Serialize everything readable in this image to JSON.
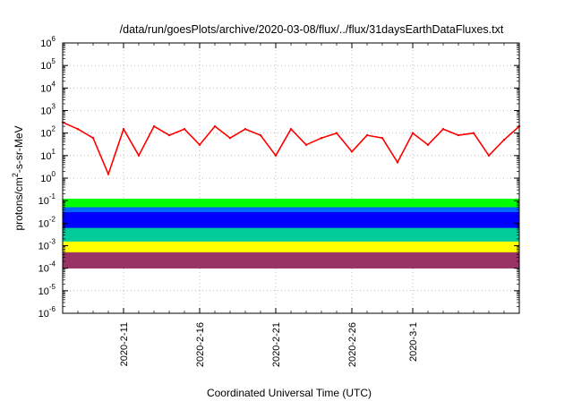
{
  "chart_data": {
    "type": "line",
    "title": "/data/run/goesPlots/archive/2020-03-08/flux/../flux/31daysEarthDataFluxes.txt",
    "xlabel": "Coordinated Universal Time (UTC)",
    "ylabel_parts": {
      "pre": "protons/cm",
      "sup": "2",
      "post": "-s-sr-MeV"
    },
    "yscale": "log",
    "ylim": [
      1e-06,
      1000000.0
    ],
    "yticks": [
      {
        "value": 1e-06,
        "base": "10",
        "exp": "-6"
      },
      {
        "value": 1e-05,
        "base": "10",
        "exp": "-5"
      },
      {
        "value": 0.0001,
        "base": "10",
        "exp": "-4"
      },
      {
        "value": 0.001,
        "base": "10",
        "exp": "-3"
      },
      {
        "value": 0.01,
        "base": "10",
        "exp": "-2"
      },
      {
        "value": 0.1,
        "base": "10",
        "exp": "-1"
      },
      {
        "value": 1.0,
        "base": "10",
        "exp": "0"
      },
      {
        "value": 10.0,
        "base": "10",
        "exp": "1"
      },
      {
        "value": 100.0,
        "base": "10",
        "exp": "2"
      },
      {
        "value": 1000.0,
        "base": "10",
        "exp": "3"
      },
      {
        "value": 10000.0,
        "base": "10",
        "exp": "4"
      },
      {
        "value": 100000.0,
        "base": "10",
        "exp": "5"
      },
      {
        "value": 1000000.0,
        "base": "10",
        "exp": "6"
      }
    ],
    "xlim": [
      "2020-02-07",
      "2020-03-08"
    ],
    "xticks": [
      {
        "date": "2020-02-11",
        "label": "2020-2-11"
      },
      {
        "date": "2020-02-16",
        "label": "2020-2-16"
      },
      {
        "date": "2020-02-21",
        "label": "2020-2-21"
      },
      {
        "date": "2020-02-26",
        "label": "2020-2-26"
      },
      {
        "date": "2020-03-01",
        "label": "2020-3-1"
      }
    ],
    "grid": true,
    "legend": "none",
    "series": [
      {
        "color": "#ff0000",
        "kind": "line",
        "x": [
          "2020-02-07",
          "2020-02-08",
          "2020-02-09",
          "2020-02-10",
          "2020-02-11",
          "2020-02-12",
          "2020-02-13",
          "2020-02-14",
          "2020-02-15",
          "2020-02-16",
          "2020-02-17",
          "2020-02-18",
          "2020-02-19",
          "2020-02-20",
          "2020-02-21",
          "2020-02-22",
          "2020-02-23",
          "2020-02-24",
          "2020-02-25",
          "2020-02-26",
          "2020-02-27",
          "2020-02-28",
          "2020-02-29",
          "2020-03-01",
          "2020-03-02",
          "2020-03-03",
          "2020-03-04",
          "2020-03-05",
          "2020-03-06",
          "2020-03-07",
          "2020-03-08"
        ],
        "values": [
          300,
          150,
          60,
          1.5,
          150,
          10,
          200,
          80,
          150,
          30,
          200,
          60,
          150,
          80,
          10,
          150,
          30,
          60,
          100,
          15,
          80,
          60,
          5,
          100,
          30,
          150,
          80,
          100,
          10,
          50,
          200
        ]
      },
      {
        "color": "#00ff00",
        "kind": "band",
        "x": [
          "2020-02-07",
          "2020-03-08"
        ],
        "upper": [
          0.12,
          0.12
        ],
        "lower": [
          0.03,
          0.03
        ]
      },
      {
        "color": "#0066ff",
        "kind": "band",
        "x": [
          "2020-02-07",
          "2020-03-08"
        ],
        "upper": [
          0.05,
          0.05
        ],
        "lower": [
          0.004,
          0.004
        ]
      },
      {
        "color": "#0000ff",
        "kind": "band",
        "x": [
          "2020-02-07",
          "2020-03-08"
        ],
        "upper": [
          0.03,
          0.03
        ],
        "lower": [
          0.005,
          0.005
        ]
      },
      {
        "color": "#00cc99",
        "kind": "band",
        "x": [
          "2020-02-07",
          "2020-03-08"
        ],
        "upper": [
          0.006,
          0.006
        ],
        "lower": [
          0.0012,
          0.0012
        ]
      },
      {
        "color": "#ffff00",
        "kind": "band",
        "x": [
          "2020-02-07",
          "2020-03-08"
        ],
        "upper": [
          0.0015,
          0.0015
        ],
        "lower": [
          0.0003,
          0.0003
        ]
      },
      {
        "color": "#993366",
        "kind": "band",
        "x": [
          "2020-02-07",
          "2020-03-08"
        ],
        "upper": [
          0.0005,
          0.0005
        ],
        "lower": [
          0.0001,
          0.0001
        ]
      }
    ]
  }
}
